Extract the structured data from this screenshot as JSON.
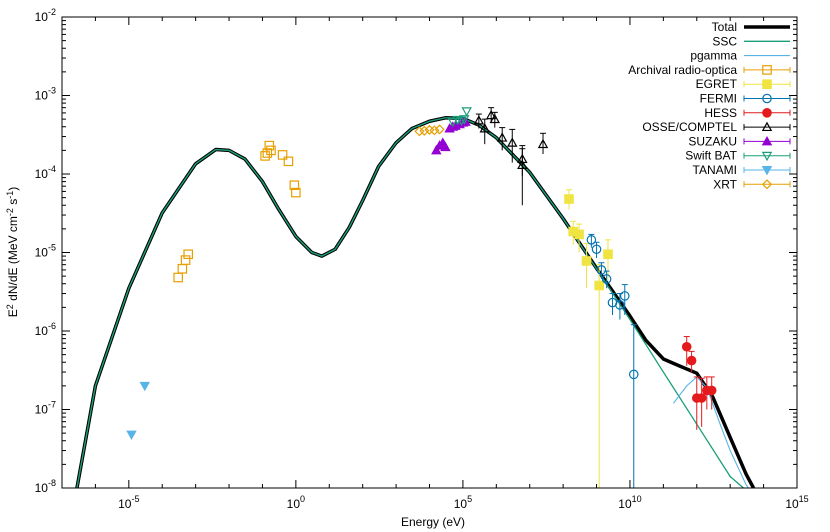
{
  "chart_data": {
    "type": "line",
    "x_scale": "log",
    "y_scale": "log",
    "xlabel": "Energy (eV)",
    "ylabel": "E^2 dN/dE (MeV cm^-2 s^-1)",
    "xlim": [
      1e-07,
      1000000000000000.0
    ],
    "ylim": [
      1e-08,
      0.01
    ],
    "x_ticks": [
      {
        "value": 1e-05,
        "mant": "10",
        "exp": "-5"
      },
      {
        "value": 1,
        "mant": "10",
        "exp": "0"
      },
      {
        "value": 100000.0,
        "mant": "10",
        "exp": "5"
      },
      {
        "value": 10000000000.0,
        "mant": "10",
        "exp": "10"
      },
      {
        "value": 1000000000000000.0,
        "mant": "10",
        "exp": "15"
      }
    ],
    "y_ticks": [
      {
        "value": 1e-08,
        "mant": "10",
        "exp": "-8"
      },
      {
        "value": 1e-07,
        "mant": "10",
        "exp": "-7"
      },
      {
        "value": 1e-06,
        "mant": "10",
        "exp": "-6"
      },
      {
        "value": 1e-05,
        "mant": "10",
        "exp": "-5"
      },
      {
        "value": 0.0001,
        "mant": "10",
        "exp": "-4"
      },
      {
        "value": 0.001,
        "mant": "10",
        "exp": "-3"
      },
      {
        "value": 0.01,
        "mant": "10",
        "exp": "-2"
      }
    ],
    "legend_position": "top-right",
    "series": [
      {
        "name": "Total",
        "kind": "line",
        "color": "#000000",
        "width": 3.5,
        "points": [
          [
            2.8e-07,
            1e-08
          ],
          [
            1e-06,
            2e-07
          ],
          [
            1e-05,
            3.5e-06
          ],
          [
            0.0001,
            3.2e-05
          ],
          [
            0.001,
            0.000135
          ],
          [
            0.004,
            0.000205
          ],
          [
            0.01,
            0.0002
          ],
          [
            0.03,
            0.000155
          ],
          [
            0.1,
            8e-05
          ],
          [
            0.3,
            3.6e-05
          ],
          [
            1,
            1.6e-05
          ],
          [
            3,
            1e-05
          ],
          [
            6,
            9e-06
          ],
          [
            15,
            1.1e-05
          ],
          [
            40,
            2.1e-05
          ],
          [
            100,
            4.6e-05
          ],
          [
            300,
            0.000125
          ],
          [
            1000.0,
            0.00025
          ],
          [
            3000.0,
            0.00038
          ],
          [
            10000.0,
            0.00047
          ],
          [
            30000.0,
            0.00052
          ],
          [
            100000.0,
            0.00051
          ],
          [
            300000.0,
            0.00042
          ],
          [
            1000000.0,
            0.00029
          ],
          [
            10000000.0,
            0.000105
          ],
          [
            100000000.0,
            2.7e-05
          ],
          [
            1000000000.0,
            6.3e-06
          ],
          [
            10000000000.0,
            1.55e-06
          ],
          [
            30000000000.0,
            7.6e-07
          ],
          [
            100000000000.0,
            4.4e-07
          ],
          [
            300000000000.0,
            3.6e-07
          ],
          [
            1000000000000.0,
            2.9e-07
          ],
          [
            3000000000000.0,
            1.45e-07
          ],
          [
            10000000000000.0,
            4.4e-08
          ],
          [
            30000000000000.0,
            1.5e-08
          ],
          [
            50000000000000.0,
            1e-08
          ]
        ]
      },
      {
        "name": "SSC",
        "kind": "line",
        "color": "#1a9e7a",
        "width": 1.3,
        "points": [
          [
            2.8e-07,
            1e-08
          ],
          [
            1e-06,
            2e-07
          ],
          [
            1e-05,
            3.5e-06
          ],
          [
            0.0001,
            3.2e-05
          ],
          [
            0.001,
            0.000135
          ],
          [
            0.004,
            0.000205
          ],
          [
            0.01,
            0.0002
          ],
          [
            0.03,
            0.000155
          ],
          [
            0.1,
            8e-05
          ],
          [
            0.3,
            3.6e-05
          ],
          [
            1,
            1.6e-05
          ],
          [
            3,
            1e-05
          ],
          [
            6,
            9e-06
          ],
          [
            15,
            1.1e-05
          ],
          [
            40,
            2.1e-05
          ],
          [
            100,
            4.6e-05
          ],
          [
            300,
            0.000125
          ],
          [
            1000.0,
            0.00025
          ],
          [
            3000.0,
            0.00038
          ],
          [
            10000.0,
            0.00047
          ],
          [
            30000.0,
            0.00052
          ],
          [
            100000.0,
            0.00051
          ],
          [
            300000.0,
            0.00042
          ],
          [
            1000000.0,
            0.00029
          ],
          [
            10000000.0,
            0.000105
          ],
          [
            100000000.0,
            2.7e-05
          ],
          [
            1000000000.0,
            6.2e-06
          ],
          [
            10000000000.0,
            1.4e-06
          ],
          [
            100000000000.0,
            3e-07
          ],
          [
            1000000000000.0,
            6.5e-08
          ],
          [
            10000000000000.0,
            1.4e-08
          ],
          [
            25000000000000.0,
            1e-08
          ]
        ]
      },
      {
        "name": "pgamma",
        "kind": "line",
        "color": "#56b4e9",
        "width": 1.1,
        "points": [
          [
            200000000000.0,
            1.2e-07
          ],
          [
            500000000000.0,
            2e-07
          ],
          [
            1000000000000.0,
            2.6e-07
          ],
          [
            2000000000000.0,
            1.9e-07
          ],
          [
            5000000000000.0,
            6.5e-08
          ],
          [
            10000000000000.0,
            3e-08
          ],
          [
            30000000000000.0,
            1.1e-08
          ],
          [
            35000000000000.0,
            1e-08
          ]
        ]
      },
      {
        "name": "Archival radio-optica",
        "kind": "points",
        "marker": "square-open",
        "color": "#e69f00",
        "points": [
          [
            0.0003,
            4.8e-06
          ],
          [
            0.0004,
            6.2e-06
          ],
          [
            0.0005,
            8e-06
          ],
          [
            0.0006,
            9.5e-06
          ],
          [
            0.12,
            0.00017
          ],
          [
            0.14,
            0.000185
          ],
          [
            0.16,
            0.00023
          ],
          [
            0.18,
            0.0002
          ],
          [
            0.4,
            0.000175
          ],
          [
            0.6,
            0.000145
          ],
          [
            0.9,
            7.2e-05
          ],
          [
            1.0,
            5.8e-05
          ]
        ]
      },
      {
        "name": "EGRET",
        "kind": "points",
        "marker": "square-filled",
        "color": "#f0e442",
        "points": [
          {
            "x": 150000000.0,
            "y": 4.8e-05,
            "ylo": 3.5e-05,
            "yhi": 6.3e-05
          },
          {
            "x": 200000000.0,
            "y": 1.85e-05,
            "ylo": 1.25e-05,
            "yhi": 2.5e-05
          },
          {
            "x": 300000000.0,
            "y": 1.7e-05,
            "ylo": 1e-05,
            "yhi": 2.3e-05
          },
          {
            "x": 500000000.0,
            "y": 7.8e-06,
            "ylo": 3.5e-06,
            "yhi": 1.3e-05
          },
          {
            "x": 1200000000.0,
            "y": 3.8e-06,
            "ylo": 1e-08,
            "yhi": 7e-06
          },
          {
            "x": 2200000000.0,
            "y": 9.5e-06,
            "ylo": 4.5e-06,
            "yhi": 1.45e-05
          }
        ]
      },
      {
        "name": "FERMI",
        "kind": "points",
        "marker": "circle-open",
        "color": "#0072b2",
        "points": [
          {
            "x": 700000000.0,
            "y": 1.45e-05,
            "ylo": 1.15e-05,
            "yhi": 1.7e-05
          },
          {
            "x": 1000000000.0,
            "y": 1.1e-05,
            "ylo": 8.5e-06,
            "yhi": 1.35e-05
          },
          {
            "x": 1400000000.0,
            "y": 6e-06,
            "ylo": 4.6e-06,
            "yhi": 7.4e-06
          },
          {
            "x": 2000000000.0,
            "y": 4.6e-06,
            "ylo": 3.5e-06,
            "yhi": 5.8e-06
          },
          {
            "x": 3000000000.0,
            "y": 2.3e-06,
            "ylo": 1.6e-06,
            "yhi": 3e-06
          },
          {
            "x": 5000000000.0,
            "y": 2.15e-06,
            "ylo": 1.4e-06,
            "yhi": 3e-06
          },
          {
            "x": 7000000000.0,
            "y": 2.8e-06,
            "ylo": 1.6e-06,
            "yhi": 3.9e-06
          },
          {
            "x": 13000000000.0,
            "y": 2.8e-07,
            "ylo": 1e-08,
            "yhi": 1.2e-06
          }
        ]
      },
      {
        "name": "HESS",
        "kind": "points",
        "marker": "circle-filled",
        "color": "#e41a1c",
        "points": [
          {
            "x": 500000000000.0,
            "y": 6.3e-07,
            "ylo": 3.6e-07,
            "yhi": 8.5e-07
          },
          {
            "x": 700000000000.0,
            "y": 4.2e-07,
            "ylo": 3e-07,
            "yhi": 5.5e-07
          },
          {
            "x": 1000000000000.0,
            "y": 1.4e-07,
            "ylo": 5.5e-08,
            "yhi": 2.6e-07
          },
          {
            "x": 1400000000000.0,
            "y": 1.4e-07,
            "ylo": 6e-08,
            "yhi": 2.5e-07
          },
          {
            "x": 2000000000000.0,
            "y": 1.75e-07,
            "ylo": 1e-07,
            "yhi": 2.6e-07
          },
          {
            "x": 2800000000000.0,
            "y": 1.75e-07,
            "ylo": 1e-07,
            "yhi": 2.6e-07
          }
        ]
      },
      {
        "name": "OSSE/COMPTEL",
        "kind": "points",
        "marker": "triangle-open",
        "color": "#000000",
        "points": [
          {
            "x": 300000.0,
            "y": 0.00048,
            "ylo": 0.00038,
            "yhi": 0.00058
          },
          {
            "x": 450000.0,
            "y": 0.00038,
            "ylo": 0.00024,
            "yhi": 0.0005
          },
          {
            "x": 700000.0,
            "y": 0.00056,
            "ylo": 0.00045,
            "yhi": 0.0007
          },
          {
            "x": 900000.0,
            "y": 0.0005,
            "ylo": 0.00039,
            "yhi": 0.00061
          },
          {
            "x": 1500000.0,
            "y": 0.00029,
            "ylo": 0.0002,
            "yhi": 0.00039
          },
          {
            "x": 3000000.0,
            "y": 0.00025,
            "ylo": 0.00014,
            "yhi": 0.00037
          },
          {
            "x": 6000000.0,
            "y": 0.000155,
            "ylo": 9.5e-05,
            "yhi": 0.00023
          },
          {
            "x": 6000000.0,
            "y": 0.00013,
            "ylo": 4e-05,
            "yhi": 0.00021
          },
          {
            "x": 25000000.0,
            "y": 0.00024,
            "ylo": 0.00018,
            "yhi": 0.00033
          }
        ]
      },
      {
        "name": "SUZAKU",
        "kind": "points",
        "marker": "triangle-filled",
        "color": "#9400d3",
        "points": [
          [
            16000.0,
            0.0002
          ],
          [
            20000.0,
            0.00023
          ],
          [
            25000.0,
            0.00025
          ],
          [
            30000.0,
            0.00022
          ],
          [
            40000.0,
            0.00038
          ],
          [
            50000.0,
            0.0004
          ],
          [
            60000.0,
            0.00041
          ],
          [
            80000.0,
            0.00043
          ],
          [
            100000.0,
            0.00045
          ],
          [
            120000.0,
            0.00046
          ]
        ]
      },
      {
        "name": "Swift BAT",
        "kind": "points",
        "marker": "triangle-down-open",
        "color": "#1a9e7a",
        "points": [
          [
            50000.0,
            0.00046
          ],
          [
            70000.0,
            0.00049
          ],
          [
            90000.0,
            0.00048
          ],
          [
            110000.0,
            0.0005
          ],
          [
            130000.0,
            0.00063
          ]
        ]
      },
      {
        "name": "TANAMI",
        "kind": "points",
        "marker": "triangle-down-filled",
        "color": "#56b4e9",
        "points": [
          [
            1.2e-05,
            4.8e-08
          ],
          [
            3e-05,
            2e-07
          ]
        ]
      },
      {
        "name": "XRT",
        "kind": "points",
        "marker": "diamond-open",
        "color": "#e69f00",
        "points": [
          [
            5000.0,
            0.00035
          ],
          [
            7000.0,
            0.000355
          ],
          [
            10000.0,
            0.000365
          ],
          [
            14000.0,
            0.00036
          ],
          [
            20000.0,
            0.00037
          ]
        ]
      }
    ]
  }
}
